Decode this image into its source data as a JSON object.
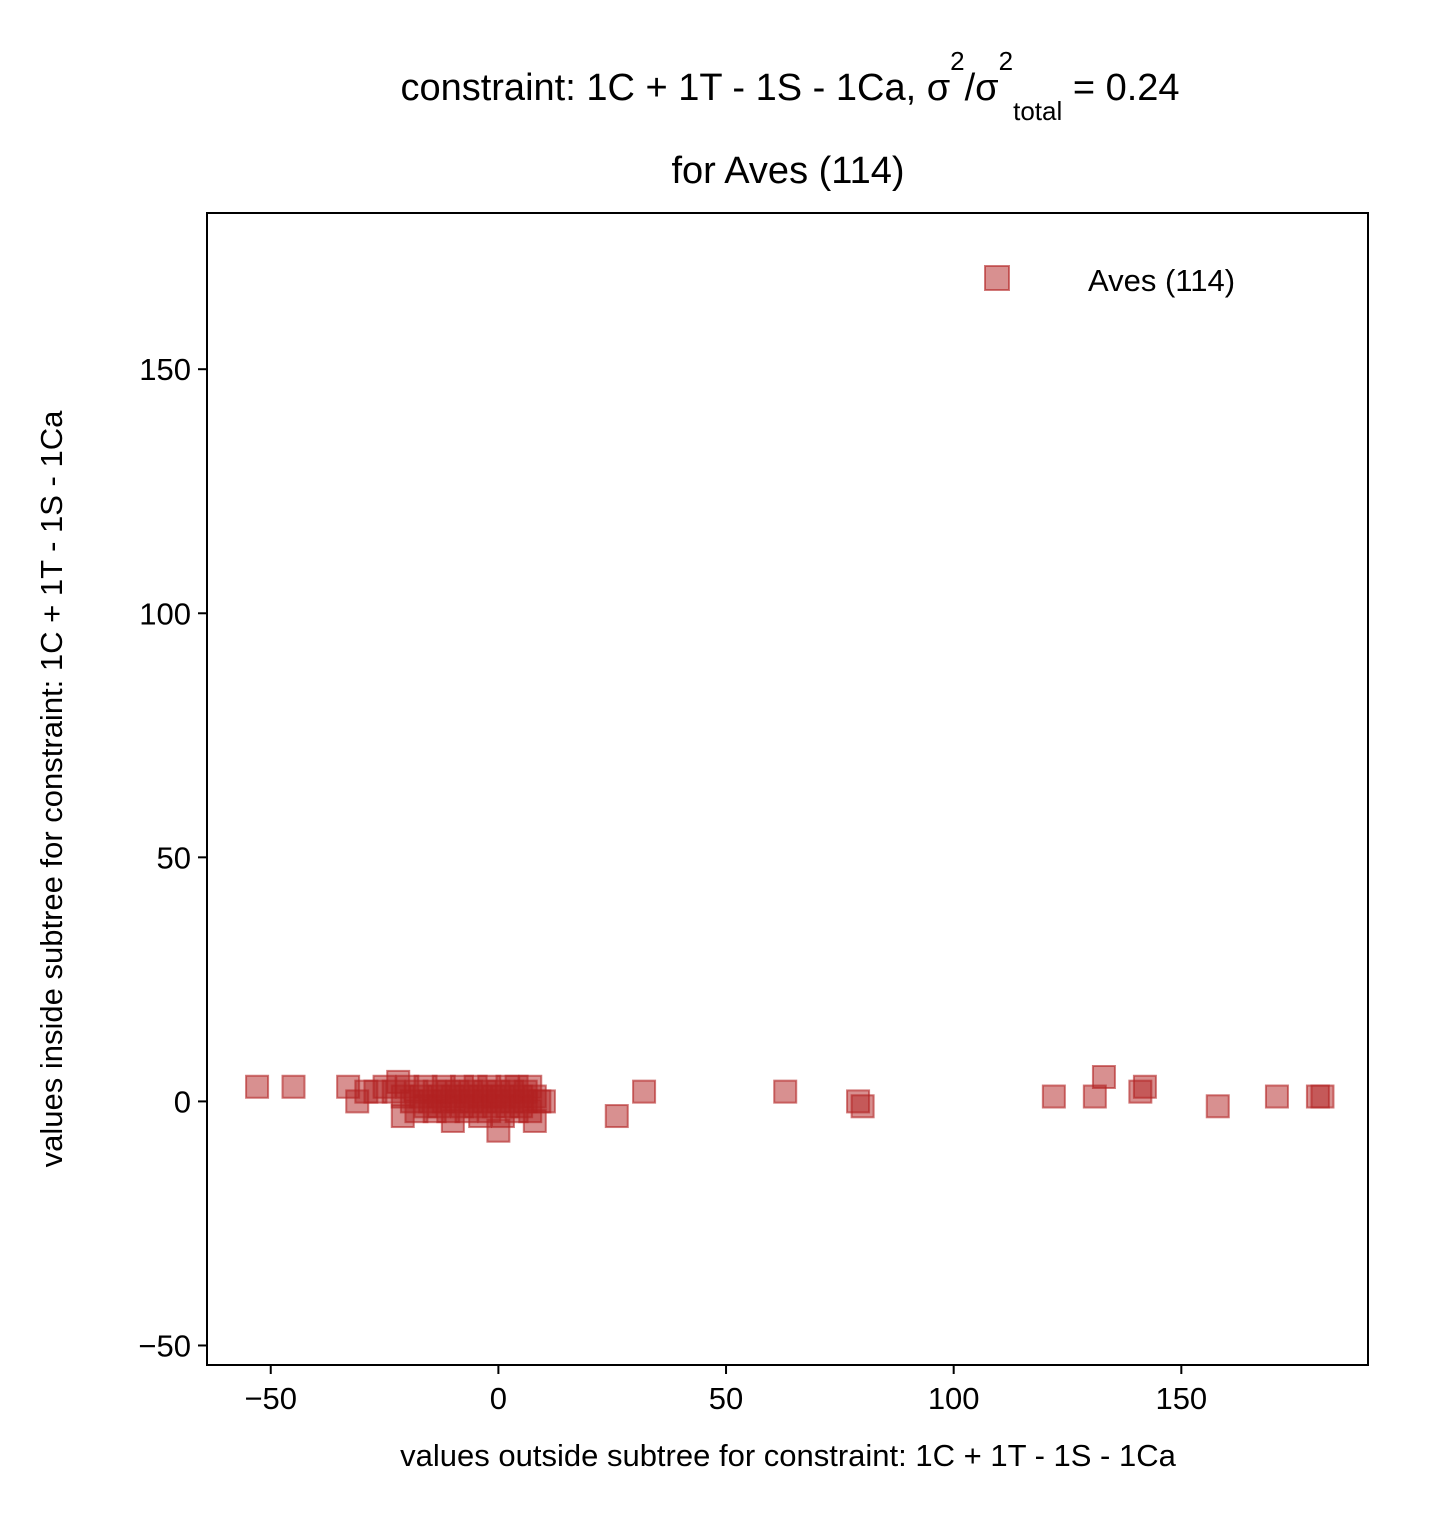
{
  "chart_data": {
    "type": "scatter",
    "title": {
      "line1_prefix": "constraint: 1C + 1T - 1S - 1Ca, σ",
      "sup1": "2",
      "slash": "/σ",
      "sup2": "2",
      "sub": "total",
      "line1_suffix": " =  0.24",
      "line2": "for Aves (114)"
    },
    "xlabel": "values outside subtree for constraint: 1C + 1T - 1S - 1Ca",
    "ylabel": "values inside subtree for constraint: 1C + 1T - 1S - 1Ca",
    "xlim": [
      -64,
      191
    ],
    "ylim": [
      -54,
      182
    ],
    "xticks": [
      -50,
      0,
      50,
      100,
      150
    ],
    "xtick_labels": [
      "−50",
      "0",
      "50",
      "100",
      "150"
    ],
    "yticks": [
      -50,
      0,
      50,
      100,
      150
    ],
    "ytick_labels": [
      "−50",
      "0",
      "50",
      "100",
      "150"
    ],
    "legend_position": "upper-right",
    "series": [
      {
        "name": "Aves (114)",
        "marker": "square",
        "color": "#b22222",
        "opacity": 0.5,
        "points": [
          [
            -53,
            3
          ],
          [
            -45,
            3
          ],
          [
            -33,
            3
          ],
          [
            -31,
            0
          ],
          [
            -29,
            2
          ],
          [
            -27,
            2
          ],
          [
            -25,
            3
          ],
          [
            -23,
            2
          ],
          [
            -22,
            4
          ],
          [
            -21,
            1
          ],
          [
            -21,
            -3
          ],
          [
            -20,
            3
          ],
          [
            -19,
            0
          ],
          [
            -18,
            2
          ],
          [
            -18,
            -2
          ],
          [
            -17,
            1
          ],
          [
            -16,
            3
          ],
          [
            -16,
            -1
          ],
          [
            -15,
            0
          ],
          [
            -14,
            2
          ],
          [
            -14,
            -2
          ],
          [
            -13,
            1
          ],
          [
            -13,
            -1
          ],
          [
            -12,
            3
          ],
          [
            -12,
            0
          ],
          [
            -11,
            -2
          ],
          [
            -11,
            2
          ],
          [
            -10,
            1
          ],
          [
            -10,
            -4
          ],
          [
            -9,
            0
          ],
          [
            -9,
            2
          ],
          [
            -8,
            -1
          ],
          [
            -8,
            3
          ],
          [
            -7,
            1
          ],
          [
            -7,
            -2
          ],
          [
            -6,
            2
          ],
          [
            -6,
            0
          ],
          [
            -5,
            3
          ],
          [
            -5,
            -1
          ],
          [
            -4,
            1
          ],
          [
            -4,
            -3
          ],
          [
            -3,
            2
          ],
          [
            -3,
            0
          ],
          [
            -2,
            -2
          ],
          [
            -2,
            3
          ],
          [
            -1,
            1
          ],
          [
            -1,
            -1
          ],
          [
            0,
            0
          ],
          [
            0,
            -6
          ],
          [
            0,
            2
          ],
          [
            1,
            -3
          ],
          [
            1,
            1
          ],
          [
            2,
            3
          ],
          [
            2,
            -1
          ],
          [
            3,
            0
          ],
          [
            3,
            2
          ],
          [
            4,
            -2
          ],
          [
            4,
            3
          ],
          [
            5,
            1
          ],
          [
            5,
            -1
          ],
          [
            6,
            2
          ],
          [
            6,
            0
          ],
          [
            7,
            3
          ],
          [
            7,
            -2
          ],
          [
            8,
            1
          ],
          [
            8,
            -4
          ],
          [
            9,
            0
          ],
          [
            10,
            0
          ],
          [
            26,
            -3
          ],
          [
            32,
            2
          ],
          [
            63,
            2
          ],
          [
            79,
            0
          ],
          [
            80,
            -1
          ],
          [
            122,
            1
          ],
          [
            131,
            1
          ],
          [
            133,
            5
          ],
          [
            141,
            2
          ],
          [
            142,
            3
          ],
          [
            158,
            -1
          ],
          [
            171,
            1
          ],
          [
            180,
            1
          ],
          [
            181,
            1
          ]
        ]
      }
    ]
  }
}
